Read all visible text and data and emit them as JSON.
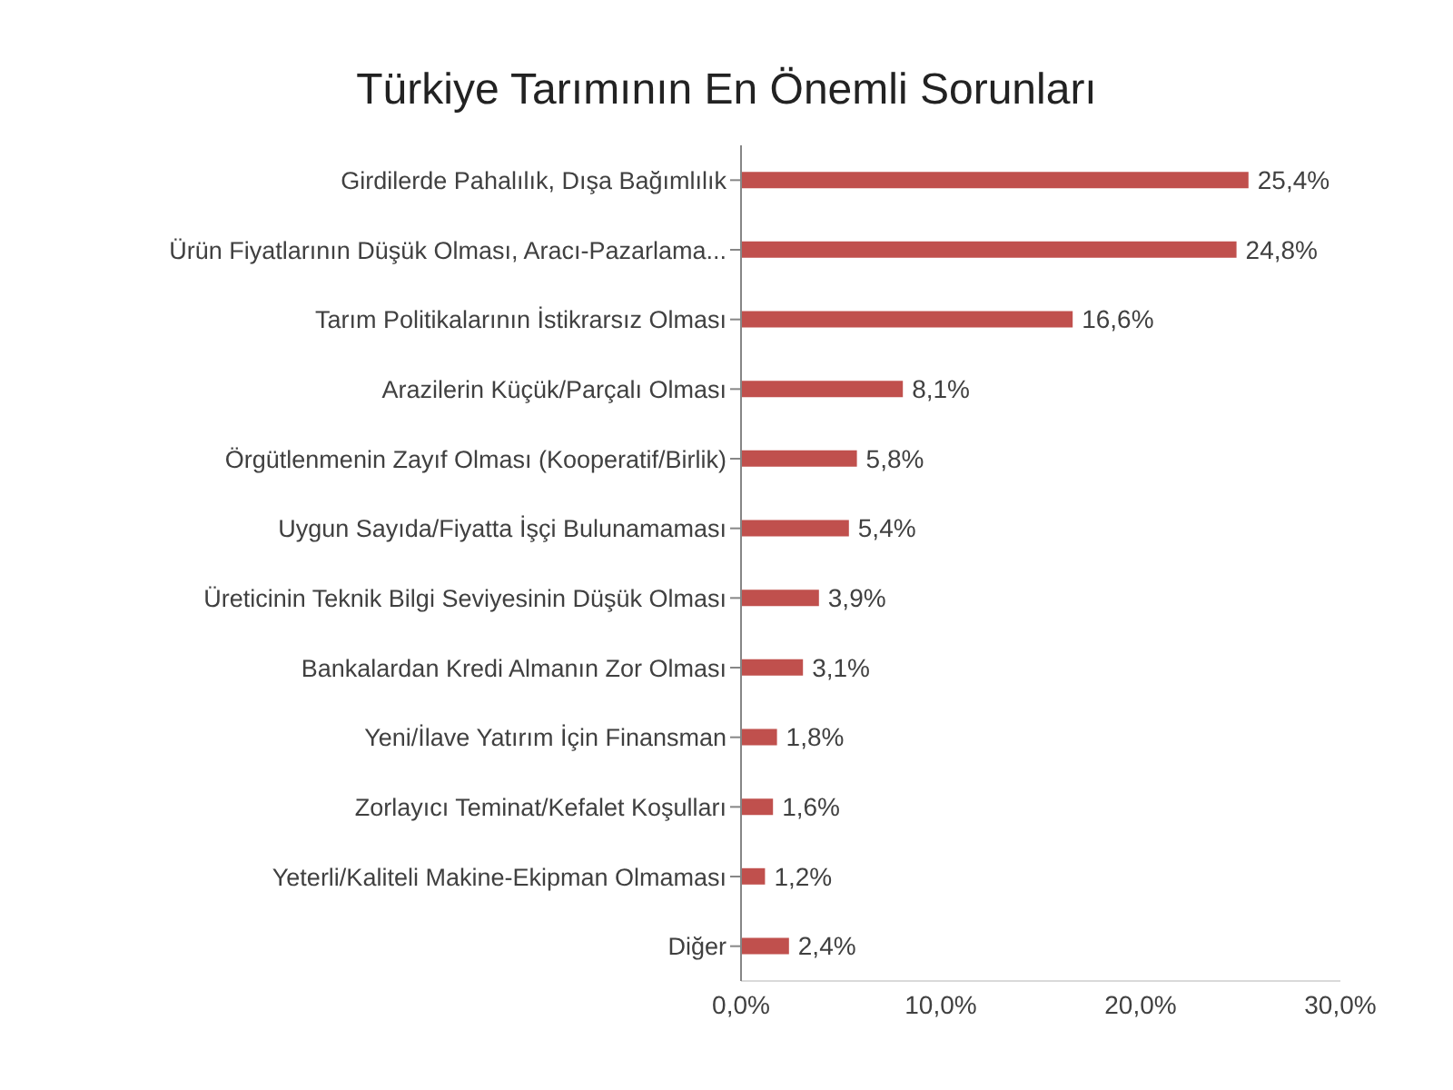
{
  "chart_data": {
    "type": "bar",
    "orientation": "horizontal",
    "title": "Türkiye Tarımının  En Önemli Sorunları",
    "categories": [
      "Girdilerde Pahalılık, Dışa Bağımlılık",
      "Ürün Fiyatlarının Düşük Olması, Aracı-Pazarlama...",
      "Tarım Politikalarının İstikrarsız Olması",
      "Arazilerin Küçük/Parçalı Olması",
      "Örgütlenmenin Zayıf Olması (Kooperatif/Birlik)",
      "Uygun Sayıda/Fiyatta İşçi Bulunamaması",
      "Üreticinin Teknik Bilgi Seviyesinin Düşük Olması",
      "Bankalardan Kredi Almanın Zor Olması",
      "Yeni/İlave Yatırım İçin Finansman",
      "Zorlayıcı Teminat/Kefalet Koşulları",
      "Yeterli/Kaliteli Makine-Ekipman Olmaması",
      "Diğer"
    ],
    "values": [
      25.4,
      24.8,
      16.6,
      8.1,
      5.8,
      5.4,
      3.9,
      3.1,
      1.8,
      1.6,
      1.2,
      2.4
    ],
    "value_labels": [
      "25,4%",
      "24,8%",
      "16,6%",
      "8,1%",
      "5,8%",
      "5,4%",
      "3,9%",
      "3,1%",
      "1,8%",
      "1,6%",
      "1,2%",
      "2,4%"
    ],
    "color": "#c0504d",
    "xlim": [
      0,
      30
    ],
    "xticks": [
      {
        "value": 0,
        "label": "0,0%"
      },
      {
        "value": 10,
        "label": "10,0%"
      },
      {
        "value": 20,
        "label": "20,0%"
      },
      {
        "value": 30,
        "label": "30,0%"
      }
    ],
    "grid": false,
    "legend": false
  }
}
